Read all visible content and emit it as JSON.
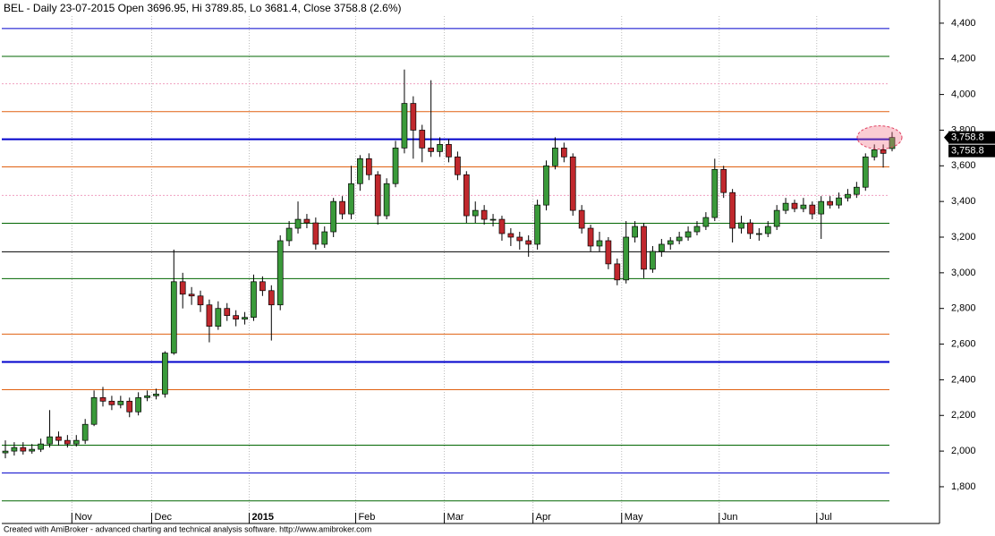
{
  "chart_data": {
    "type": "candlestick",
    "title": "BEL - Daily 23-07-2015 Open 3696.95, Hi 3789.85, Lo 3681.4, Close 3758.8 (2.6%)",
    "footer": "Created with AmiBroker - advanced charting and technical analysis software. http://www.amibroker.com",
    "categories": [
      null,
      null,
      null,
      null,
      null,
      null,
      null,
      null,
      "Nov",
      null,
      null,
      null,
      null,
      null,
      null,
      null,
      null,
      "Dec",
      null,
      null,
      null,
      null,
      null,
      null,
      null,
      null,
      null,
      null,
      "2015",
      null,
      null,
      null,
      null,
      null,
      null,
      null,
      null,
      null,
      null,
      null,
      "Feb",
      null,
      null,
      null,
      null,
      null,
      null,
      null,
      null,
      null,
      "Mar",
      null,
      null,
      null,
      null,
      null,
      null,
      null,
      null,
      null,
      "Apr",
      null,
      null,
      null,
      null,
      null,
      null,
      null,
      null,
      null,
      "May",
      null,
      null,
      null,
      null,
      null,
      null,
      null,
      null,
      null,
      null,
      "Jun",
      null,
      null,
      null,
      null,
      null,
      null,
      null,
      null,
      null,
      null,
      "Jul",
      null,
      null,
      null,
      null,
      null,
      null,
      null,
      null
    ],
    "open": [
      1990,
      2000,
      2020,
      2000,
      2010,
      2040,
      2080,
      2060,
      2040,
      2060,
      2150,
      2300,
      2280,
      2260,
      2280,
      2220,
      2300,
      2310,
      2320,
      2550,
      2950,
      2880,
      2870,
      2820,
      2700,
      2800,
      2760,
      2740,
      2750,
      2950,
      2900,
      2820,
      3180,
      3250,
      3300,
      3280,
      3160,
      3230,
      3400,
      3330,
      3500,
      3640,
      3550,
      3320,
      3500,
      3700,
      3950,
      3800,
      3700,
      3680,
      3720,
      3650,
      3550,
      3320,
      3350,
      3300,
      3300,
      3220,
      3200,
      3180,
      3160,
      3380,
      3600,
      3700,
      3650,
      3350,
      3250,
      3150,
      3180,
      3050,
      2960,
      3200,
      3260,
      3020,
      3120,
      3160,
      3180,
      3200,
      3230,
      3260,
      3310,
      3580,
      3450,
      3250,
      3280,
      3220,
      3220,
      3260,
      3350,
      3390,
      3360,
      3380,
      3330,
      3400,
      3380,
      3420,
      3440,
      3480,
      3650,
      3690,
      3696.95
    ],
    "high": [
      2060,
      2050,
      2050,
      2040,
      2070,
      2230,
      2110,
      2090,
      2090,
      2180,
      2340,
      2360,
      2310,
      2310,
      2300,
      2330,
      2340,
      2350,
      2560,
      3130,
      3000,
      2920,
      2900,
      2850,
      2840,
      2830,
      2790,
      2780,
      2990,
      2980,
      2930,
      3210,
      3290,
      3400,
      3330,
      3310,
      3260,
      3420,
      3430,
      3600,
      3660,
      3670,
      3570,
      3530,
      3740,
      4140,
      3990,
      3830,
      4080,
      3760,
      3750,
      3680,
      3570,
      3400,
      3380,
      3330,
      3320,
      3250,
      3230,
      3210,
      3410,
      3630,
      3760,
      3730,
      3670,
      3380,
      3270,
      3230,
      3200,
      3080,
      3290,
      3290,
      3280,
      3150,
      3190,
      3200,
      3230,
      3260,
      3290,
      3340,
      3640,
      3600,
      3470,
      3320,
      3300,
      3250,
      3290,
      3380,
      3420,
      3410,
      3420,
      3400,
      3430,
      3430,
      3450,
      3470,
      3510,
      3670,
      3720,
      3720,
      3789.85
    ],
    "low": [
      1960,
      1975,
      1980,
      1985,
      1995,
      2020,
      2030,
      2020,
      2025,
      2040,
      2140,
      2250,
      2230,
      2240,
      2190,
      2200,
      2280,
      2290,
      2300,
      2540,
      2800,
      2820,
      2780,
      2610,
      2680,
      2730,
      2700,
      2710,
      2730,
      2870,
      2620,
      2790,
      3150,
      3220,
      3250,
      3130,
      3140,
      3200,
      3300,
      3300,
      3460,
      3520,
      3270,
      3300,
      3480,
      3670,
      3640,
      3620,
      3650,
      3650,
      3620,
      3520,
      3280,
      3280,
      3270,
      3260,
      3180,
      3150,
      3130,
      3090,
      3130,
      3350,
      3580,
      3620,
      3320,
      3220,
      3120,
      3120,
      3020,
      2930,
      2940,
      3170,
      2970,
      3000,
      3090,
      3130,
      3160,
      3180,
      3210,
      3240,
      3290,
      3420,
      3170,
      3220,
      3190,
      3180,
      3200,
      3240,
      3330,
      3340,
      3340,
      3300,
      3190,
      3360,
      3360,
      3400,
      3420,
      3460,
      3630,
      3590,
      3681.4
    ],
    "close": [
      2000,
      2020,
      2000,
      2010,
      2040,
      2080,
      2060,
      2040,
      2060,
      2150,
      2300,
      2280,
      2260,
      2280,
      2220,
      2300,
      2310,
      2320,
      2550,
      2950,
      2880,
      2870,
      2820,
      2700,
      2800,
      2760,
      2740,
      2750,
      2950,
      2900,
      2820,
      3180,
      3250,
      3300,
      3280,
      3160,
      3230,
      3400,
      3330,
      3500,
      3640,
      3550,
      3320,
      3500,
      3700,
      3950,
      3800,
      3700,
      3680,
      3720,
      3650,
      3550,
      3320,
      3350,
      3300,
      3300,
      3220,
      3200,
      3180,
      3160,
      3380,
      3600,
      3700,
      3650,
      3350,
      3250,
      3150,
      3180,
      3050,
      2960,
      3200,
      3260,
      3020,
      3120,
      3160,
      3180,
      3200,
      3230,
      3260,
      3310,
      3580,
      3450,
      3250,
      3280,
      3220,
      3220,
      3260,
      3350,
      3390,
      3360,
      3380,
      3330,
      3400,
      3380,
      3420,
      3440,
      3480,
      3650,
      3690,
      3670,
      3758.8
    ],
    "up_color": "#3a9a3a",
    "down_color": "#c0282d",
    "ylim": [
      1594,
      4530
    ],
    "yticks": [
      {
        "value": 1800,
        "label": "1,800"
      },
      {
        "value": 2000,
        "label": "2,000"
      },
      {
        "value": 2200,
        "label": "2,200"
      },
      {
        "value": 2400,
        "label": "2,400"
      },
      {
        "value": 2600,
        "label": "2,600"
      },
      {
        "value": 2800,
        "label": "2,800"
      },
      {
        "value": 3000,
        "label": "3,000"
      },
      {
        "value": 3200,
        "label": "3,200"
      },
      {
        "value": 3400,
        "label": "3,400"
      },
      {
        "value": 3600,
        "label": "3,600"
      },
      {
        "value": 3800,
        "label": "3,800"
      },
      {
        "value": 4000,
        "label": "4,000"
      },
      {
        "value": 4200,
        "label": "4,200"
      },
      {
        "value": 4400,
        "label": "4,400"
      }
    ],
    "levels": [
      {
        "value": 4370,
        "color": "#0000cc",
        "width": 1
      },
      {
        "value": 4214,
        "color": "#006600",
        "width": 1
      },
      {
        "value": 4060,
        "color": "#f0a0c0",
        "width": 1,
        "dash": true
      },
      {
        "value": 3904,
        "color": "#e06010",
        "width": 1
      },
      {
        "value": 3749,
        "color": "#0000cc",
        "width": 2
      },
      {
        "value": 3594,
        "color": "#e06010",
        "width": 1
      },
      {
        "value": 3434,
        "color": "#f0a0c0",
        "width": 1,
        "dash": true
      },
      {
        "value": 3278,
        "color": "#006600",
        "width": 1
      },
      {
        "value": 3118,
        "color": "#000000",
        "width": 1
      },
      {
        "value": 2967,
        "color": "#006600",
        "width": 1
      },
      {
        "value": 2656,
        "color": "#e06010",
        "width": 1
      },
      {
        "value": 2500,
        "color": "#0000cc",
        "width": 2
      },
      {
        "value": 2344,
        "color": "#e06010",
        "width": 1
      },
      {
        "value": 2033,
        "color": "#006600",
        "width": 1
      },
      {
        "value": 1877,
        "color": "#0000cc",
        "width": 1
      },
      {
        "value": 1721,
        "color": "#006600",
        "width": 1
      }
    ],
    "last_labels": [
      {
        "value": 3758.8,
        "label": "3,758.8"
      },
      {
        "value": 3758.8,
        "label": "3,758.8"
      }
    ]
  }
}
